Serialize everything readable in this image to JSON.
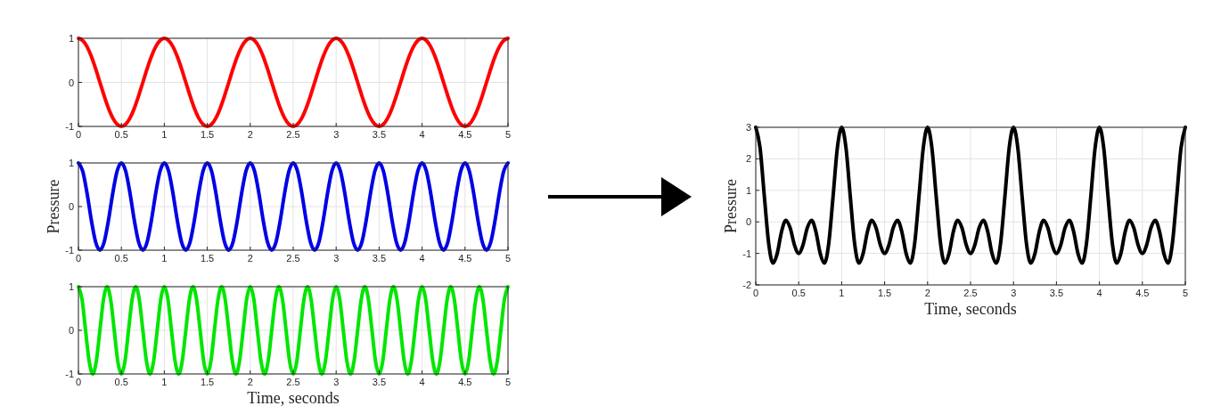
{
  "chart_data": [
    {
      "type": "line",
      "x": [
        0,
        0.05,
        0.1,
        0.15,
        0.2,
        0.25,
        0.3,
        0.35,
        0.4,
        0.45,
        0.5,
        0.55,
        0.6,
        0.65,
        0.7,
        0.75,
        0.8,
        0.85,
        0.9,
        0.95,
        1,
        1.05,
        1.1,
        1.15,
        1.2,
        1.25,
        1.3,
        1.35,
        1.4,
        1.45,
        1.5,
        1.55,
        1.6,
        1.65,
        1.7,
        1.75,
        1.8,
        1.85,
        1.9,
        1.95,
        2,
        2.05,
        2.1,
        2.15,
        2.2,
        2.25,
        2.3,
        2.35,
        2.4,
        2.45,
        2.5,
        2.55,
        2.6,
        2.65,
        2.7,
        2.75,
        2.8,
        2.85,
        2.9,
        2.95,
        3,
        3.05,
        3.1,
        3.15,
        3.2,
        3.25,
        3.3,
        3.35,
        3.4,
        3.45,
        3.5,
        3.55,
        3.6,
        3.65,
        3.7,
        3.75,
        3.8,
        3.85,
        3.9,
        3.95,
        4,
        4.05,
        4.1,
        4.15,
        4.2,
        4.25,
        4.3,
        4.35,
        4.4,
        4.45,
        4.5,
        4.55,
        4.6,
        4.65,
        4.7,
        4.75,
        4.8,
        4.85,
        4.9,
        4.95,
        5
      ],
      "series": [
        {
          "color": "#ff0000",
          "values": [
            1,
            0.95,
            0.81,
            0.59,
            0.31,
            0,
            -0.31,
            -0.59,
            -0.81,
            -0.95,
            -1,
            -0.95,
            -0.81,
            -0.59,
            -0.31,
            0,
            0.31,
            0.59,
            0.81,
            0.95,
            1,
            0.95,
            0.81,
            0.59,
            0.31,
            0,
            -0.31,
            -0.59,
            -0.81,
            -0.95,
            -1,
            -0.95,
            -0.81,
            -0.59,
            -0.31,
            0,
            0.31,
            0.59,
            0.81,
            0.95,
            1,
            0.95,
            0.81,
            0.59,
            0.31,
            0,
            -0.31,
            -0.59,
            -0.81,
            -0.95,
            -1,
            -0.95,
            -0.81,
            -0.59,
            -0.31,
            0,
            0.31,
            0.59,
            0.81,
            0.95,
            1,
            0.95,
            0.81,
            0.59,
            0.31,
            0,
            -0.31,
            -0.59,
            -0.81,
            -0.95,
            -1,
            -0.95,
            -0.81,
            -0.59,
            -0.31,
            0,
            0.31,
            0.59,
            0.81,
            0.95,
            1,
            0.95,
            0.81,
            0.59,
            0.31,
            0,
            -0.31,
            -0.59,
            -0.81,
            -0.95,
            -1,
            -0.95,
            -0.81,
            -0.59,
            -0.31,
            0,
            0.31,
            0.59,
            0.81,
            0.95,
            1
          ]
        }
      ],
      "xlim": [
        0,
        5
      ],
      "ylim": [
        -1,
        1
      ],
      "xticks": [
        0,
        0.5,
        1,
        1.5,
        2,
        2.5,
        3,
        3.5,
        4,
        4.5,
        5
      ],
      "yticks": [
        -1,
        0,
        1
      ],
      "grid": true
    },
    {
      "type": "line",
      "ylabel": "Pressure",
      "x": [
        0,
        0.05,
        0.1,
        0.15,
        0.2,
        0.25,
        0.3,
        0.35,
        0.4,
        0.45,
        0.5,
        0.55,
        0.6,
        0.65,
        0.7,
        0.75,
        0.8,
        0.85,
        0.9,
        0.95,
        1,
        1.05,
        1.1,
        1.15,
        1.2,
        1.25,
        1.3,
        1.35,
        1.4,
        1.45,
        1.5,
        1.55,
        1.6,
        1.65,
        1.7,
        1.75,
        1.8,
        1.85,
        1.9,
        1.95,
        2,
        2.05,
        2.1,
        2.15,
        2.2,
        2.25,
        2.3,
        2.35,
        2.4,
        2.45,
        2.5,
        2.55,
        2.6,
        2.65,
        2.7,
        2.75,
        2.8,
        2.85,
        2.9,
        2.95,
        3,
        3.05,
        3.1,
        3.15,
        3.2,
        3.25,
        3.3,
        3.35,
        3.4,
        3.45,
        3.5,
        3.55,
        3.6,
        3.65,
        3.7,
        3.75,
        3.8,
        3.85,
        3.9,
        3.95,
        4,
        4.05,
        4.1,
        4.15,
        4.2,
        4.25,
        4.3,
        4.35,
        4.4,
        4.45,
        4.5,
        4.55,
        4.6,
        4.65,
        4.7,
        4.75,
        4.8,
        4.85,
        4.9,
        4.95,
        5
      ],
      "series": [
        {
          "color": "#0000e6",
          "values": [
            1,
            0.81,
            0.31,
            -0.31,
            -0.81,
            -1,
            -0.81,
            -0.31,
            0.31,
            0.81,
            1,
            0.81,
            0.31,
            -0.31,
            -0.81,
            -1,
            -0.81,
            -0.31,
            0.31,
            0.81,
            1,
            0.81,
            0.31,
            -0.31,
            -0.81,
            -1,
            -0.81,
            -0.31,
            0.31,
            0.81,
            1,
            0.81,
            0.31,
            -0.31,
            -0.81,
            -1,
            -0.81,
            -0.31,
            0.31,
            0.81,
            1,
            0.81,
            0.31,
            -0.31,
            -0.81,
            -1,
            -0.81,
            -0.31,
            0.31,
            0.81,
            1,
            0.81,
            0.31,
            -0.31,
            -0.81,
            -1,
            -0.81,
            -0.31,
            0.31,
            0.81,
            1,
            0.81,
            0.31,
            -0.31,
            -0.81,
            -1,
            -0.81,
            -0.31,
            0.31,
            0.81,
            1,
            0.81,
            0.31,
            -0.31,
            -0.81,
            -1,
            -0.81,
            -0.31,
            0.31,
            0.81,
            1,
            0.81,
            0.31,
            -0.31,
            -0.81,
            -1,
            -0.81,
            -0.31,
            0.31,
            0.81,
            1,
            0.81,
            0.31,
            -0.31,
            -0.81,
            -1,
            -0.81,
            -0.31,
            0.31,
            0.81,
            1
          ]
        }
      ],
      "xlim": [
        0,
        5
      ],
      "ylim": [
        -1,
        1
      ],
      "xticks": [
        0,
        0.5,
        1,
        1.5,
        2,
        2.5,
        3,
        3.5,
        4,
        4.5,
        5
      ],
      "yticks": [
        -1,
        0,
        1
      ],
      "grid": true
    },
    {
      "type": "line",
      "xlabel": "Time, seconds",
      "x": [
        0,
        0.042,
        0.083,
        0.125,
        0.167,
        0.208,
        0.25,
        0.292,
        0.333,
        0.375,
        0.417,
        0.458,
        0.5,
        0.542,
        0.583,
        0.625,
        0.667,
        0.708,
        0.75,
        0.792,
        0.833,
        0.875,
        0.917,
        0.958,
        1,
        1.042,
        1.083,
        1.125,
        1.167,
        1.208,
        1.25,
        1.292,
        1.333,
        1.375,
        1.417,
        1.458,
        1.5,
        1.542,
        1.583,
        1.625,
        1.667,
        1.708,
        1.75,
        1.792,
        1.833,
        1.875,
        1.917,
        1.958,
        2,
        2.042,
        2.083,
        2.125,
        2.167,
        2.208,
        2.25,
        2.292,
        2.333,
        2.375,
        2.417,
        2.458,
        2.5,
        2.542,
        2.583,
        2.625,
        2.667,
        2.708,
        2.75,
        2.792,
        2.833,
        2.875,
        2.917,
        2.958,
        3,
        3.042,
        3.083,
        3.125,
        3.167,
        3.208,
        3.25,
        3.292,
        3.333,
        3.375,
        3.417,
        3.458,
        3.5,
        3.542,
        3.583,
        3.625,
        3.667,
        3.708,
        3.75,
        3.792,
        3.833,
        3.875,
        3.917,
        3.958,
        4,
        4.042,
        4.083,
        4.125,
        4.167,
        4.208,
        4.25,
        4.292,
        4.333,
        4.375,
        4.417,
        4.458,
        4.5,
        4.542,
        4.583,
        4.625,
        4.667,
        4.708,
        4.75,
        4.792,
        4.833,
        4.875,
        4.917,
        4.958,
        5
      ],
      "series": [
        {
          "color": "#00e600",
          "values": [
            1,
            0.71,
            0,
            -0.71,
            -1,
            -0.71,
            0,
            0.71,
            1,
            0.71,
            0,
            -0.71,
            -1,
            -0.71,
            0,
            0.71,
            1,
            0.71,
            0,
            -0.71,
            -1,
            -0.71,
            0,
            0.71,
            1,
            0.71,
            0,
            -0.71,
            -1,
            -0.71,
            0,
            0.71,
            1,
            0.71,
            0,
            -0.71,
            -1,
            -0.71,
            0,
            0.71,
            1,
            0.71,
            0,
            -0.71,
            -1,
            -0.71,
            0,
            0.71,
            1,
            0.71,
            0,
            -0.71,
            -1,
            -0.71,
            0,
            0.71,
            1,
            0.71,
            0,
            -0.71,
            -1,
            -0.71,
            0,
            0.71,
            1,
            0.71,
            0,
            -0.71,
            -1,
            -0.71,
            0,
            0.71,
            1,
            0.71,
            0,
            -0.71,
            -1,
            -0.71,
            0,
            0.71,
            1,
            0.71,
            0,
            -0.71,
            -1,
            -0.71,
            0,
            0.71,
            1,
            0.71,
            0,
            -0.71,
            -1,
            -0.71,
            0,
            0.71,
            1,
            0.71,
            0,
            -0.71,
            -1,
            -0.71,
            0,
            0.71,
            1,
            0.71,
            0,
            -0.71,
            -1,
            -0.71,
            0,
            0.71,
            1,
            0.71,
            0,
            -0.71,
            -1,
            -0.71,
            0,
            0.71,
            1
          ]
        }
      ],
      "xlim": [
        0,
        5
      ],
      "ylim": [
        -1,
        1
      ],
      "xticks": [
        0,
        0.5,
        1,
        1.5,
        2,
        2.5,
        3,
        3.5,
        4,
        4.5,
        5
      ],
      "yticks": [
        -1,
        0,
        1
      ],
      "grid": true
    },
    {
      "type": "line",
      "xlabel": "Time, seconds",
      "ylabel": "Pressure",
      "x": [
        0,
        0.05,
        0.1,
        0.15,
        0.2,
        0.25,
        0.3,
        0.35,
        0.4,
        0.45,
        0.5,
        0.55,
        0.6,
        0.65,
        0.7,
        0.75,
        0.8,
        0.85,
        0.9,
        0.95,
        1,
        1.05,
        1.1,
        1.15,
        1.2,
        1.25,
        1.3,
        1.35,
        1.4,
        1.45,
        1.5,
        1.55,
        1.6,
        1.65,
        1.7,
        1.75,
        1.8,
        1.85,
        1.9,
        1.95,
        2,
        2.05,
        2.1,
        2.15,
        2.2,
        2.25,
        2.3,
        2.35,
        2.4,
        2.45,
        2.5,
        2.55,
        2.6,
        2.65,
        2.7,
        2.75,
        2.8,
        2.85,
        2.9,
        2.95,
        3,
        3.05,
        3.1,
        3.15,
        3.2,
        3.25,
        3.3,
        3.35,
        3.4,
        3.45,
        3.5,
        3.55,
        3.6,
        3.65,
        3.7,
        3.75,
        3.8,
        3.85,
        3.9,
        3.95,
        4,
        4.05,
        4.1,
        4.15,
        4.2,
        4.25,
        4.3,
        4.35,
        4.4,
        4.45,
        4.5,
        4.55,
        4.6,
        4.65,
        4.7,
        4.75,
        4.8,
        4.85,
        4.9,
        4.95,
        5
      ],
      "series": [
        {
          "color": "#000000",
          "values": [
            3,
            2.35,
            0.81,
            -0.67,
            -1.31,
            -1,
            -0.31,
            0.05,
            -0.19,
            -0.73,
            -1,
            -0.73,
            -0.19,
            0.05,
            -0.31,
            -1,
            -1.31,
            -0.67,
            0.81,
            2.35,
            3,
            2.35,
            0.81,
            -0.67,
            -1.31,
            -1,
            -0.31,
            0.05,
            -0.19,
            -0.73,
            -1,
            -0.73,
            -0.19,
            0.05,
            -0.31,
            -1,
            -1.31,
            -0.67,
            0.81,
            2.35,
            3,
            2.35,
            0.81,
            -0.67,
            -1.31,
            -1,
            -0.31,
            0.05,
            -0.19,
            -0.73,
            -1,
            -0.73,
            -0.19,
            0.05,
            -0.31,
            -1,
            -1.31,
            -0.67,
            0.81,
            2.35,
            3,
            2.35,
            0.81,
            -0.67,
            -1.31,
            -1,
            -0.31,
            0.05,
            -0.19,
            -0.73,
            -1,
            -0.73,
            -0.19,
            0.05,
            -0.31,
            -1,
            -1.31,
            -0.67,
            0.81,
            2.35,
            3,
            2.35,
            0.81,
            -0.67,
            -1.31,
            -1,
            -0.31,
            0.05,
            -0.19,
            -0.73,
            -1,
            -0.73,
            -0.19,
            0.05,
            -0.31,
            -1,
            -1.31,
            -0.67,
            0.81,
            2.35,
            3
          ]
        }
      ],
      "xlim": [
        0,
        5
      ],
      "ylim": [
        -2,
        3
      ],
      "xticks": [
        0,
        0.5,
        1,
        1.5,
        2,
        2.5,
        3,
        3.5,
        4,
        4.5,
        5
      ],
      "yticks": [
        -2,
        -1,
        0,
        1,
        2,
        3
      ],
      "grid": true
    }
  ]
}
